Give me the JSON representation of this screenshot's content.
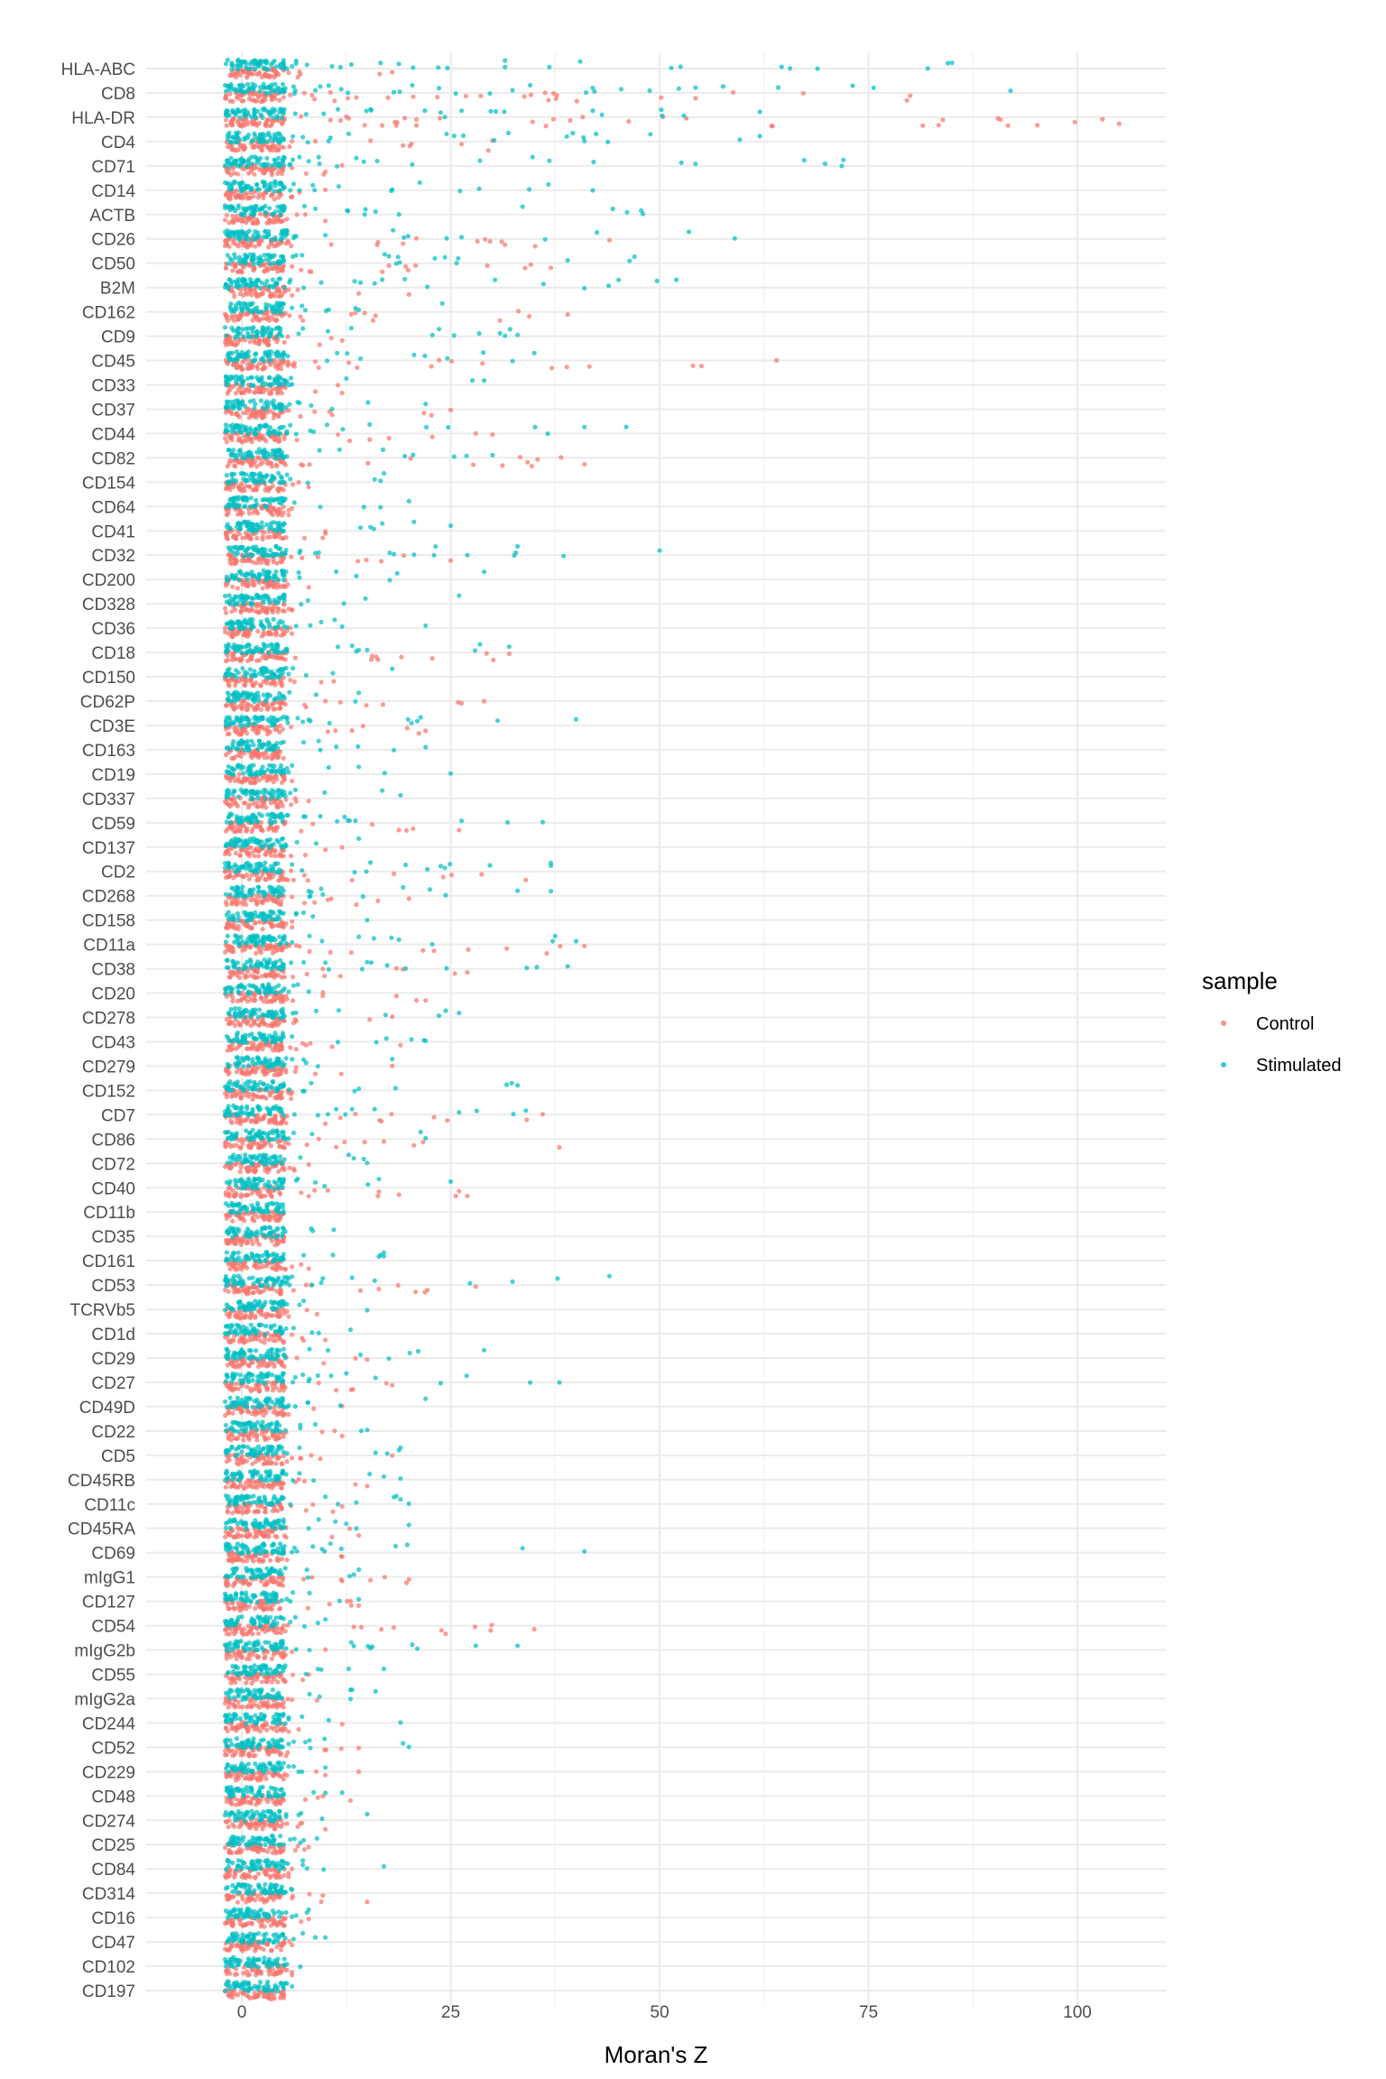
{
  "chart_data": {
    "type": "scatter",
    "subtype": "jitter-strip",
    "xlabel": "Moran's Z",
    "ylabel": "",
    "xlim": [
      -10,
      110
    ],
    "x_ticks": [
      0,
      25,
      50,
      75,
      100
    ],
    "grid": true,
    "legend": {
      "title": "sample",
      "position": "right",
      "entries": [
        {
          "name": "Control",
          "color": "#F8766D"
        },
        {
          "name": "Stimulated",
          "color": "#00BFC4"
        }
      ]
    },
    "categories": [
      "HLA-ABC",
      "CD8",
      "HLA-DR",
      "CD4",
      "CD71",
      "CD14",
      "ACTB",
      "CD26",
      "CD50",
      "B2M",
      "CD162",
      "CD9",
      "CD45",
      "CD33",
      "CD37",
      "CD44",
      "CD82",
      "CD154",
      "CD64",
      "CD41",
      "CD32",
      "CD200",
      "CD328",
      "CD36",
      "CD18",
      "CD150",
      "CD62P",
      "CD3E",
      "CD163",
      "CD19",
      "CD337",
      "CD59",
      "CD137",
      "CD2",
      "CD268",
      "CD158",
      "CD11a",
      "CD38",
      "CD20",
      "CD278",
      "CD43",
      "CD279",
      "CD152",
      "CD7",
      "CD86",
      "CD72",
      "CD40",
      "CD11b",
      "CD35",
      "CD161",
      "CD53",
      "TCRVb5",
      "CD1d",
      "CD29",
      "CD27",
      "CD49D",
      "CD22",
      "CD5",
      "CD45RB",
      "CD11c",
      "CD45RA",
      "CD69",
      "mIgG1",
      "CD127",
      "CD54",
      "mIgG2b",
      "CD55",
      "mIgG2a",
      "CD244",
      "CD52",
      "CD229",
      "CD48",
      "CD274",
      "CD25",
      "CD84",
      "CD314",
      "CD16",
      "CD47",
      "CD102",
      "CD197"
    ],
    "series": [
      {
        "name": "Control",
        "max_values": [
          18,
          80,
          105,
          30,
          12,
          10,
          10,
          44,
          37,
          20,
          39,
          12,
          64,
          12,
          25,
          30,
          41,
          8,
          6,
          10,
          25,
          8,
          6,
          6,
          32,
          11,
          29,
          22,
          4,
          6,
          8,
          26,
          12,
          34,
          20,
          6,
          41,
          27,
          22,
          18,
          19,
          18,
          6,
          36,
          38,
          8,
          27,
          4,
          5,
          8,
          28,
          9,
          10,
          15,
          18,
          12,
          12,
          18,
          15,
          12,
          14,
          12,
          20,
          14,
          35,
          10,
          8,
          9,
          12,
          14,
          14,
          13,
          10,
          8,
          6,
          15,
          8,
          6,
          6,
          5
        ],
        "values": []
      },
      {
        "name": "Stimulated",
        "max_values": [
          85,
          92,
          62,
          62,
          72,
          42,
          48,
          59,
          47,
          52,
          24,
          33,
          35,
          29,
          22,
          46,
          30,
          17,
          20,
          25,
          50,
          29,
          26,
          22,
          32,
          18,
          14,
          40,
          22,
          25,
          19,
          36,
          14,
          37,
          37,
          15,
          40,
          39,
          8,
          26,
          22,
          18,
          33,
          34,
          22,
          15,
          25,
          3,
          11,
          17,
          44,
          15,
          13,
          29,
          38,
          22,
          15,
          19,
          19,
          20,
          20,
          41,
          14,
          14,
          10,
          33,
          17,
          16,
          19,
          20,
          10,
          12,
          15,
          9,
          17,
          6,
          8,
          10,
          7,
          6
        ],
        "values": []
      }
    ]
  }
}
